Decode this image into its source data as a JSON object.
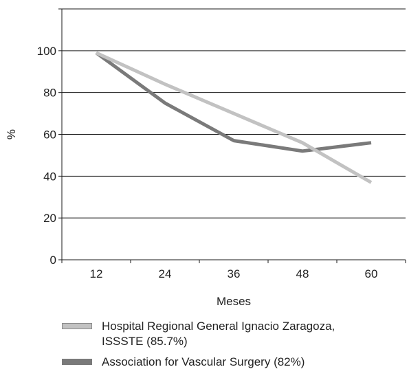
{
  "chart_data": {
    "type": "line",
    "categories": [
      "12",
      "24",
      "36",
      "48",
      "60"
    ],
    "series": [
      {
        "name": "Hospital Regional General Ignacio Zaragoza, ISSSTE (85.7%)",
        "values": [
          99,
          84,
          70,
          56,
          37
        ],
        "color": "#c2c2c2",
        "swatch_border": "#8a8a8a"
      },
      {
        "name": "Association for Vascular Surgery (82%)",
        "values": [
          99,
          75,
          57,
          52,
          56
        ],
        "color": "#7a7a7a",
        "swatch_border": "#7a7a7a"
      }
    ],
    "y_ticks": [
      "0",
      "20",
      "40",
      "60",
      "80",
      "100"
    ],
    "ylim": [
      0,
      120
    ],
    "xlabel": "Meses",
    "ylabel": "%",
    "grid": true,
    "legend_position": "bottom"
  }
}
